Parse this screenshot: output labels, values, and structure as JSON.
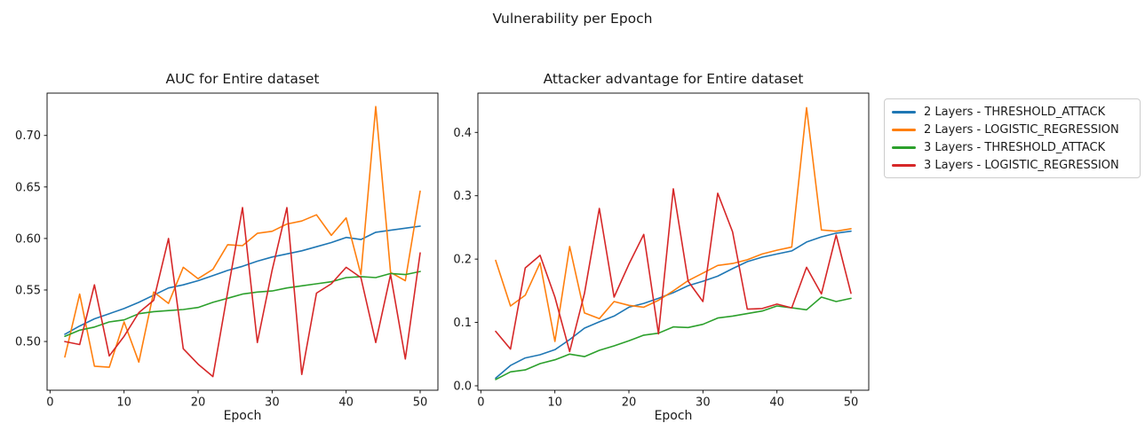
{
  "figure": {
    "suptitle": "Vulnerability per Epoch",
    "background": "#ffffff"
  },
  "legend": {
    "items": [
      {
        "label": "2 Layers - THRESHOLD_ATTACK",
        "color": "#1f77b4"
      },
      {
        "label": "2 Layers - LOGISTIC_REGRESSION",
        "color": "#ff7f0e"
      },
      {
        "label": "3 Layers - THRESHOLD_ATTACK",
        "color": "#2ca02c"
      },
      {
        "label": "3 Layers - LOGISTIC_REGRESSION",
        "color": "#d62728"
      }
    ]
  },
  "chart_data": [
    {
      "type": "line",
      "title": "AUC for Entire dataset",
      "xlabel": "Epoch",
      "x": [
        2,
        4,
        6,
        8,
        10,
        12,
        14,
        16,
        18,
        20,
        22,
        24,
        26,
        28,
        30,
        32,
        34,
        36,
        38,
        40,
        42,
        44,
        46,
        48,
        50
      ],
      "xticks": [
        0,
        10,
        20,
        30,
        40,
        50
      ],
      "yticks": [
        0.5,
        0.55,
        0.6,
        0.65,
        0.7
      ],
      "ytick_decimals": 2,
      "xlim": [
        -0.4,
        52.4
      ],
      "ylim": [
        0.4527,
        0.7411
      ],
      "grid": false,
      "legend_position": "outside-right",
      "series": [
        {
          "name": "2 Layers - THRESHOLD_ATTACK",
          "color": "#1f77b4",
          "values": [
            0.507,
            0.515,
            0.522,
            0.527,
            0.532,
            0.538,
            0.545,
            0.552,
            0.555,
            0.559,
            0.564,
            0.569,
            0.573,
            0.578,
            0.582,
            0.585,
            0.588,
            0.592,
            0.596,
            0.601,
            0.599,
            0.606,
            0.608,
            0.61,
            0.612
          ]
        },
        {
          "name": "2 Layers - LOGISTIC_REGRESSION",
          "color": "#ff7f0e",
          "values": [
            0.485,
            0.546,
            0.476,
            0.475,
            0.519,
            0.48,
            0.548,
            0.537,
            0.572,
            0.561,
            0.57,
            0.594,
            0.593,
            0.605,
            0.607,
            0.614,
            0.617,
            0.623,
            0.603,
            0.62,
            0.565,
            0.728,
            0.567,
            0.559,
            0.646
          ]
        },
        {
          "name": "3 Layers - THRESHOLD_ATTACK",
          "color": "#2ca02c",
          "values": [
            0.505,
            0.511,
            0.514,
            0.519,
            0.521,
            0.527,
            0.529,
            0.53,
            0.531,
            0.533,
            0.538,
            0.542,
            0.546,
            0.548,
            0.549,
            0.552,
            0.554,
            0.556,
            0.558,
            0.562,
            0.563,
            0.562,
            0.566,
            0.565,
            0.568
          ]
        },
        {
          "name": "3 Layers - LOGISTIC_REGRESSION",
          "color": "#d62728",
          "values": [
            0.5,
            0.497,
            0.555,
            0.486,
            0.505,
            0.528,
            0.54,
            0.6,
            0.493,
            0.478,
            0.466,
            0.548,
            0.63,
            0.499,
            0.569,
            0.63,
            0.468,
            0.547,
            0.556,
            0.572,
            0.562,
            0.499,
            0.565,
            0.483,
            0.586
          ]
        }
      ]
    },
    {
      "type": "line",
      "title": "Attacker advantage for Entire dataset",
      "xlabel": "Epoch",
      "x": [
        2,
        4,
        6,
        8,
        10,
        12,
        14,
        16,
        18,
        20,
        22,
        24,
        26,
        28,
        30,
        32,
        34,
        36,
        38,
        40,
        42,
        44,
        46,
        48,
        50
      ],
      "xticks": [
        0,
        10,
        20,
        30,
        40,
        50
      ],
      "yticks": [
        0.0,
        0.1,
        0.2,
        0.3,
        0.4
      ],
      "ytick_decimals": 1,
      "xlim": [
        -0.4,
        52.4
      ],
      "ylim": [
        -0.007,
        0.462
      ],
      "grid": false,
      "series": [
        {
          "name": "2 Layers - THRESHOLD_ATTACK",
          "color": "#1f77b4",
          "values": [
            0.012,
            0.032,
            0.044,
            0.049,
            0.057,
            0.073,
            0.091,
            0.101,
            0.11,
            0.124,
            0.13,
            0.138,
            0.147,
            0.158,
            0.165,
            0.173,
            0.185,
            0.196,
            0.203,
            0.208,
            0.213,
            0.227,
            0.235,
            0.241,
            0.244
          ]
        },
        {
          "name": "2 Layers - LOGISTIC_REGRESSION",
          "color": "#ff7f0e",
          "values": [
            0.198,
            0.126,
            0.143,
            0.194,
            0.07,
            0.22,
            0.115,
            0.106,
            0.133,
            0.127,
            0.124,
            0.135,
            0.15,
            0.166,
            0.178,
            0.19,
            0.193,
            0.199,
            0.208,
            0.214,
            0.219,
            0.439,
            0.246,
            0.244,
            0.248
          ]
        },
        {
          "name": "3 Layers - THRESHOLD_ATTACK",
          "color": "#2ca02c",
          "values": [
            0.01,
            0.022,
            0.025,
            0.035,
            0.041,
            0.05,
            0.046,
            0.056,
            0.063,
            0.071,
            0.08,
            0.083,
            0.093,
            0.092,
            0.097,
            0.107,
            0.11,
            0.114,
            0.118,
            0.126,
            0.123,
            0.12,
            0.14,
            0.133,
            0.138
          ]
        },
        {
          "name": "3 Layers - LOGISTIC_REGRESSION",
          "color": "#d62728",
          "values": [
            0.086,
            0.058,
            0.186,
            0.206,
            0.14,
            0.054,
            0.146,
            0.28,
            0.14,
            0.192,
            0.239,
            0.082,
            0.311,
            0.165,
            0.133,
            0.304,
            0.243,
            0.121,
            0.122,
            0.129,
            0.123,
            0.187,
            0.145,
            0.238,
            0.146
          ]
        }
      ]
    }
  ]
}
